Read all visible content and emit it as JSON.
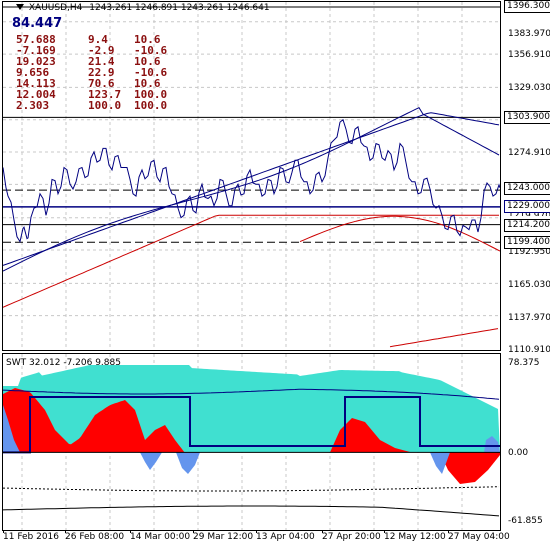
{
  "header": {
    "title": "XAUUSD,H4",
    "ohlc": "1243.261 1246.891 1243.261 1246.641",
    "big_value": "84.447"
  },
  "indicator_table": [
    [
      "57.688",
      "9.4",
      "10.6"
    ],
    [
      "-7.169",
      "-2.9",
      "-10.6"
    ],
    [
      "19.023",
      "21.4",
      "10.6"
    ],
    [
      "9.656",
      "22.9",
      "-10.6"
    ],
    [
      "14.113",
      "70.6",
      "10.6"
    ],
    [
      "12.004",
      "123.7",
      "100.0"
    ],
    [
      "2.303",
      "100.0",
      "100.0"
    ]
  ],
  "price_axis": {
    "ticks": [
      "1383.970",
      "1356.910",
      "1329.030",
      "1274.910",
      "1192.950",
      "1165.030",
      "1137.970",
      "1110.910"
    ],
    "tags": [
      "1396.300",
      "1303.900",
      "1243.000",
      "1229.000",
      "1214.200",
      "1199.400"
    ],
    "partial_tick": "1219.970"
  },
  "sub_window": {
    "label": "SWT 32.012 -7.206 9.885",
    "ticks": [
      "78.375",
      "0.00",
      "-61.855"
    ]
  },
  "time_axis": [
    "11 Feb 2016",
    "26 Feb 08:00",
    "14 Mar 00:00",
    "29 Mar 12:00",
    "13 Apr 04:00",
    "27 Apr 20:00",
    "12 May 12:00",
    "27 May 04:00"
  ],
  "colors": {
    "price": "#000080",
    "ma_red": "#cc0000",
    "hist_red": "#ff0000",
    "hist_cyan": "#40e0d0",
    "hist_blue": "#6495ed",
    "grid": "#c8c8c8"
  }
}
